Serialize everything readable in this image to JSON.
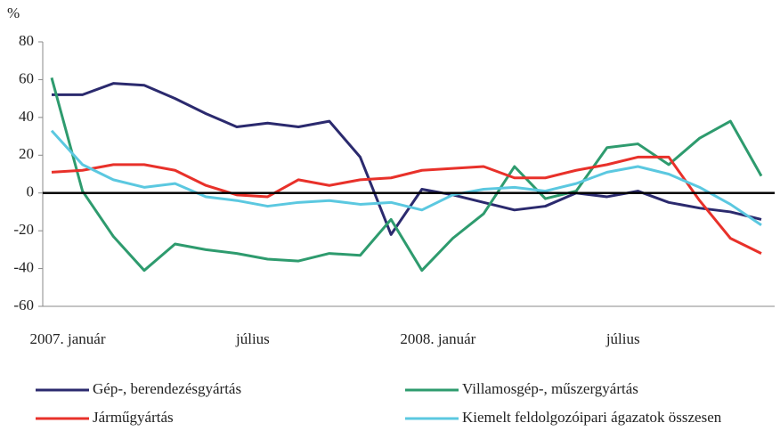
{
  "chart_data": {
    "type": "line",
    "y_unit": "%",
    "categories": [
      "2007. január",
      null,
      null,
      null,
      null,
      null,
      "július",
      null,
      null,
      null,
      null,
      null,
      "2008. január",
      null,
      null,
      null,
      null,
      null,
      "július",
      null,
      null,
      null,
      null,
      null
    ],
    "series": [
      {
        "name": "Gép-, berendezésgyártás",
        "color": "#2b2a6e",
        "values": [
          52,
          52,
          58,
          57,
          50,
          42,
          35,
          37,
          35,
          38,
          19,
          -22,
          2,
          -1,
          -5,
          -9,
          -7,
          0,
          -2,
          1,
          -5,
          -8,
          -10,
          -14
        ]
      },
      {
        "name": "Villamosgép-, műszergyártás",
        "color": "#2e9b6e",
        "values": [
          61,
          1,
          -23,
          -41,
          -27,
          -30,
          -32,
          -35,
          -36,
          -32,
          -33,
          -14,
          -41,
          -24,
          -11,
          14,
          -3,
          1,
          24,
          26,
          15,
          29,
          38,
          9
        ]
      },
      {
        "name": "Járműgyártás",
        "color": "#e8312a",
        "values": [
          11,
          12,
          15,
          15,
          12,
          4,
          -1,
          -2,
          7,
          4,
          7,
          8,
          12,
          13,
          14,
          8,
          8,
          12,
          15,
          19,
          19,
          -4,
          -24,
          -32
        ]
      },
      {
        "name": "Kiemelt feldolgozóipari ágazatok összesen",
        "color": "#5bc8e0",
        "values": [
          33,
          15,
          7,
          3,
          5,
          -2,
          -4,
          -7,
          -5,
          -4,
          -6,
          -5,
          -9,
          -1,
          2,
          3,
          1,
          5,
          11,
          14,
          10,
          3,
          -6,
          -17
        ]
      }
    ],
    "ylim": [
      -60,
      80
    ],
    "yticks": [
      -60,
      -40,
      -20,
      0,
      20,
      40,
      60,
      80
    ],
    "grid": false
  }
}
